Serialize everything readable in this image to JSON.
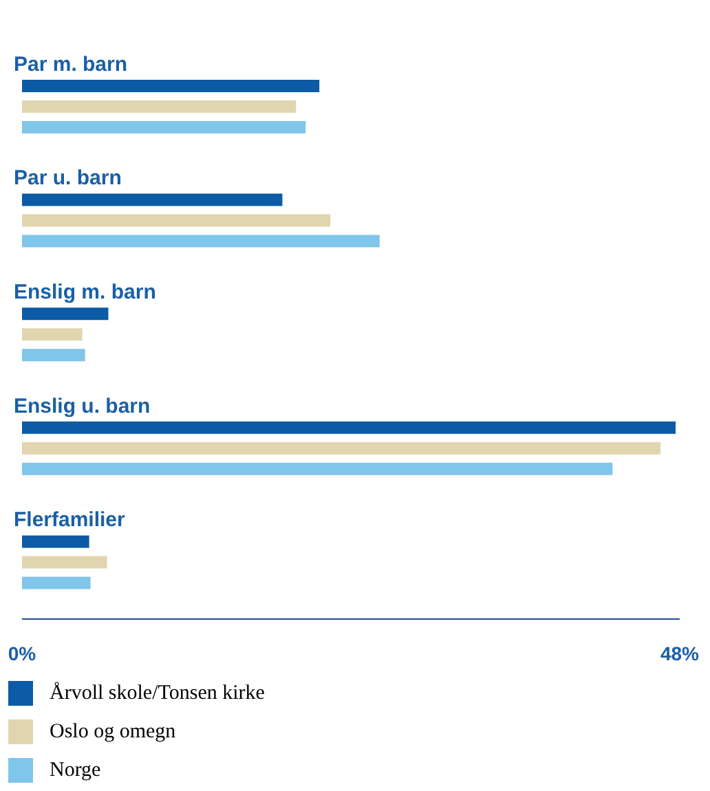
{
  "chart_data": {
    "type": "bar",
    "orientation": "horizontal",
    "categories": [
      "Par m. barn",
      "Par u. barn",
      "Enslig m. barn",
      "Enslig u. barn",
      "Flerfamilier"
    ],
    "series": [
      {
        "name": "Årvoll skole/Tonsen kirke",
        "color": "#0b5ba6",
        "values": [
          21.7,
          19,
          6.3,
          47.7,
          4.9
        ]
      },
      {
        "name": "Oslo og omegn",
        "color": "#e1d5b0",
        "values": [
          20,
          22.5,
          4.4,
          46.6,
          6.2
        ]
      },
      {
        "name": "Norge",
        "color": "#80c5ea",
        "values": [
          20.7,
          26.1,
          4.6,
          43.1,
          5
        ]
      }
    ],
    "xlim": [
      0,
      48
    ],
    "xticks": [
      {
        "value": 0,
        "label": "0%"
      },
      {
        "value": 48,
        "label": "48%"
      }
    ],
    "grid": false,
    "legend": "bottom"
  }
}
